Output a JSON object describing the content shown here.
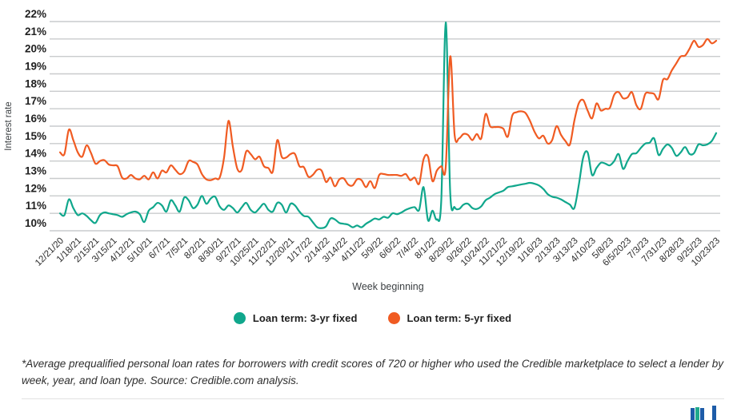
{
  "chart_data": {
    "type": "line",
    "title": "",
    "xlabel": "Week beginning",
    "ylabel": "Interest rate",
    "ylim": [
      10,
      22
    ],
    "grid": "horizontal",
    "legend_position": "bottom",
    "y_tick_labels": [
      "22%",
      "21%",
      "20%",
      "19%",
      "18%",
      "17%",
      "16%",
      "15%",
      "14%",
      "13%",
      "12%",
      "11%",
      "10%"
    ],
    "x_tick_labels": [
      "12/21/20",
      "1/18/21",
      "2/15/21",
      "3/15/21",
      "4/12/21",
      "5/10/21",
      "6/7/21",
      "7/5/21",
      "8/2/21",
      "8/30/21",
      "9/27/21",
      "10/25/21",
      "11/22/21",
      "12/20/21",
      "1/17/22",
      "2/14/22",
      "3/14/22",
      "4/11/22",
      "5/9/22",
      "6/6/22",
      "7/4/22",
      "8/1/22",
      "8/29/22",
      "9/26/22",
      "10/24/22",
      "11/21/22",
      "12/19/22",
      "1/16/23",
      "2/13/23",
      "3/13/23",
      "4/10/23",
      "5/8/23",
      "6/5/2023",
      "7/3/23",
      "7/31/23",
      "8/28/23",
      "9/25/23",
      "10/23/23"
    ],
    "weeks_between_ticks": 4,
    "series": [
      {
        "name": "Loan term: 3-yr fixed",
        "color": "#10a78c",
        "values": [
          11.0,
          10.9,
          11.8,
          11.3,
          10.9,
          11.0,
          10.85,
          10.6,
          10.45,
          10.9,
          11.05,
          11.0,
          10.95,
          10.9,
          10.8,
          10.95,
          11.05,
          11.1,
          10.95,
          10.5,
          11.15,
          11.35,
          11.6,
          11.45,
          11.1,
          11.75,
          11.45,
          11.1,
          11.9,
          11.75,
          11.3,
          11.5,
          12.0,
          11.55,
          11.85,
          11.95,
          11.4,
          11.2,
          11.45,
          11.3,
          11.05,
          11.35,
          11.6,
          11.2,
          11.05,
          11.3,
          11.55,
          11.2,
          11.1,
          11.6,
          11.5,
          11.05,
          11.55,
          11.45,
          11.1,
          10.85,
          10.8,
          10.5,
          10.2,
          10.15,
          10.25,
          10.7,
          10.65,
          10.45,
          10.4,
          10.35,
          10.2,
          10.3,
          10.2,
          10.4,
          10.55,
          10.7,
          10.65,
          10.8,
          10.75,
          11.0,
          10.95,
          11.05,
          11.2,
          11.3,
          11.35,
          11.2,
          12.5,
          10.6,
          11.15,
          10.65,
          11.8,
          21.95,
          12.2,
          11.35,
          11.25,
          11.5,
          11.55,
          11.3,
          11.25,
          11.4,
          11.75,
          11.9,
          12.1,
          12.2,
          12.3,
          12.5,
          12.55,
          12.6,
          12.65,
          12.7,
          12.75,
          12.7,
          12.6,
          12.4,
          12.1,
          11.95,
          11.9,
          11.8,
          11.65,
          11.5,
          11.3,
          12.6,
          14.2,
          14.5,
          13.2,
          13.6,
          13.9,
          13.85,
          13.75,
          14.0,
          14.4,
          13.55,
          14.0,
          14.4,
          14.45,
          14.75,
          15.0,
          15.05,
          15.3,
          14.35,
          14.7,
          14.95,
          14.75,
          14.3,
          14.5,
          14.8,
          14.4,
          14.45,
          14.95,
          14.9,
          14.95,
          15.15,
          15.6
        ]
      },
      {
        "name": "Loan term: 5-yr fixed",
        "color": "#f05b22",
        "values": [
          14.5,
          14.4,
          15.8,
          15.2,
          14.5,
          14.25,
          14.9,
          14.45,
          13.85,
          14.0,
          14.05,
          13.8,
          13.75,
          13.7,
          13.05,
          13.0,
          13.2,
          13.0,
          12.95,
          13.15,
          12.95,
          13.35,
          13.0,
          13.45,
          13.35,
          13.75,
          13.5,
          13.25,
          13.4,
          14.0,
          13.95,
          13.8,
          13.25,
          12.95,
          12.9,
          13.0,
          13.05,
          14.2,
          16.3,
          14.8,
          13.55,
          13.5,
          14.55,
          14.4,
          14.1,
          14.25,
          13.7,
          13.6,
          13.4,
          15.2,
          14.25,
          14.2,
          14.4,
          14.4,
          13.7,
          13.65,
          13.1,
          13.2,
          13.5,
          13.45,
          12.8,
          13.05,
          12.55,
          12.95,
          13.0,
          12.65,
          12.6,
          12.95,
          12.9,
          12.5,
          12.85,
          12.45,
          13.2,
          13.25,
          13.2,
          13.2,
          13.2,
          13.15,
          13.25,
          12.9,
          13.05,
          12.7,
          14.1,
          14.25,
          12.85,
          13.45,
          13.7,
          13.65,
          20.0,
          15.5,
          15.3,
          15.55,
          15.5,
          15.2,
          15.55,
          15.3,
          16.7,
          16.0,
          15.95,
          15.95,
          15.85,
          15.4,
          16.6,
          16.8,
          16.85,
          16.75,
          16.3,
          15.7,
          15.3,
          15.45,
          15.0,
          15.2,
          16.0,
          15.5,
          15.15,
          14.95,
          16.3,
          17.3,
          17.5,
          16.9,
          16.45,
          17.3,
          16.9,
          17.0,
          17.05,
          17.8,
          17.95,
          17.6,
          17.65,
          17.95,
          17.2,
          17.0,
          17.85,
          17.9,
          17.85,
          17.55,
          18.65,
          18.7,
          19.2,
          19.6,
          20.0,
          20.05,
          20.45,
          20.9,
          20.55,
          20.65,
          21.0,
          20.75,
          20.9
        ]
      }
    ],
    "style": {
      "gridline_color": "#c9cbcd",
      "y_label_color": "#1f1f1f",
      "x_label_color": "#2b2b2b",
      "axis_title_color": "#3c4043"
    }
  },
  "footnote": "*Average prequalified personal loan rates for borrowers with credit scores of 720 or higher who used the Credible marketplace to select a lender by week, year, and loan type. Source: Credible.com analysis.",
  "logo": {
    "bars": [
      {
        "color": "#1d5ca8",
        "height": 15
      },
      {
        "color": "#1fa98c",
        "height": 16
      },
      {
        "color": "#1d5ca8",
        "height": 15
      },
      {
        "color": "#1d5ca8",
        "height": 18
      }
    ]
  }
}
